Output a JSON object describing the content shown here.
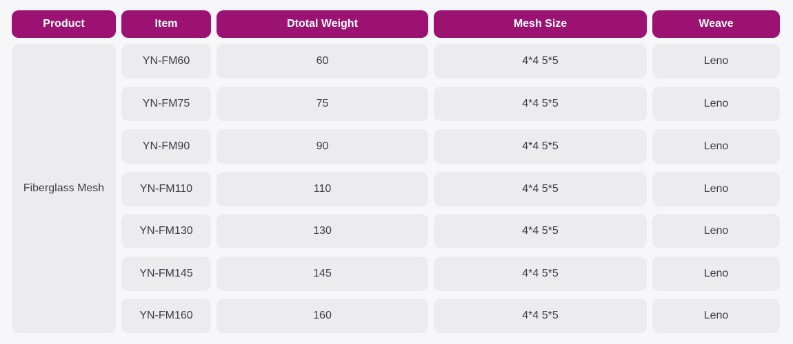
{
  "headers": {
    "product": "Product",
    "item": "Item",
    "weight": "Dtotal Weight",
    "mesh": "Mesh Size",
    "weave": "Weave"
  },
  "product_name": "Fiberglass Mesh",
  "rows": [
    {
      "item": "YN-FM60",
      "weight": "60",
      "mesh": "4*4 5*5",
      "weave": "Leno"
    },
    {
      "item": "YN-FM75",
      "weight": "75",
      "mesh": "4*4 5*5",
      "weave": "Leno"
    },
    {
      "item": "YN-FM90",
      "weight": "90",
      "mesh": "4*4 5*5",
      "weave": "Leno"
    },
    {
      "item": "YN-FM110",
      "weight": "110",
      "mesh": "4*4 5*5",
      "weave": "Leno"
    },
    {
      "item": "YN-FM130",
      "weight": "130",
      "mesh": "4*4 5*5",
      "weave": "Leno"
    },
    {
      "item": "YN-FM145",
      "weight": "145",
      "mesh": "4*4 5*5",
      "weave": "Leno"
    },
    {
      "item": "YN-FM160",
      "weight": "160",
      "mesh": "4*4 5*5",
      "weave": "Leno"
    }
  ],
  "colors": {
    "header_bg": "#9b1272",
    "header_text": "#ffffff",
    "cell_bg": "#ececef",
    "cell_text": "#3c3c44",
    "page_bg": "#f7f7f9"
  }
}
